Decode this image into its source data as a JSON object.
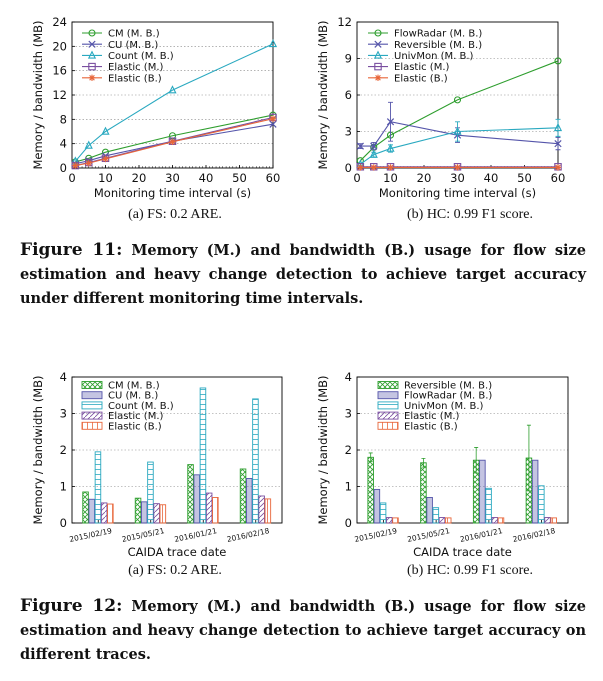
{
  "colors": {
    "cm": "#2e9e2e",
    "cu": "#5555aa",
    "count": "#2aa9c0",
    "elastic_m": "#7a4fa0",
    "elastic_b": "#e8663a",
    "reversible": "#2e9e2e",
    "flowradar": "#5555aa",
    "univmon": "#2aa9c0",
    "grid": "#888888"
  },
  "figure11": {
    "number": "Figure 11:",
    "caption": "Memory (M.) and bandwidth (B.) usage for flow size estimation and heavy change detection to achieve target accuracy under different monitoring time intervals."
  },
  "figure12": {
    "number": "Figure 12:",
    "caption": "Memory (M.) and bandwidth (B.) usage for flow size estimation and heavy change detection to achieve target accuracy on different traces."
  },
  "chart_data": [
    {
      "id": "fig11a",
      "type": "line",
      "caption": "(a) FS: 0.2 ARE.",
      "xlabel": "Monitoring time interval (s)",
      "ylabel": "Memory / bandwidth (MB)",
      "xlim": [
        0,
        60
      ],
      "ylim": [
        0,
        24
      ],
      "xticks": [
        0,
        10,
        20,
        30,
        40,
        50,
        60
      ],
      "yticks": [
        0,
        4,
        8,
        12,
        16,
        20,
        24
      ],
      "grid": true,
      "legend_position": "top-left",
      "x": [
        1,
        5,
        10,
        30,
        60
      ],
      "series": [
        {
          "name": "CM (M. B.)",
          "marker": "circle",
          "color": "cm",
          "values": [
            1.0,
            1.6,
            2.6,
            5.3,
            8.7
          ]
        },
        {
          "name": "CU (M. B.)",
          "marker": "x",
          "color": "cu",
          "values": [
            0.7,
            1.2,
            2.0,
            4.4,
            7.2
          ]
        },
        {
          "name": "Count (M. B.)",
          "marker": "triangle",
          "color": "count",
          "values": [
            1.1,
            3.7,
            6.0,
            12.8,
            20.4
          ]
        },
        {
          "name": "Elastic (M.)",
          "marker": "square",
          "color": "elastic_m",
          "values": [
            0.4,
            0.9,
            1.6,
            4.4,
            8.3
          ]
        },
        {
          "name": "Elastic (B.)",
          "marker": "star",
          "color": "elastic_b",
          "values": [
            0.4,
            0.8,
            1.5,
            4.3,
            8.1
          ]
        }
      ]
    },
    {
      "id": "fig11b",
      "type": "line",
      "caption": "(b) HC: 0.99 F1 score.",
      "xlabel": "Monitoring time interval (s)",
      "ylabel": "Memory / bandwidth (MB)",
      "xlim": [
        0,
        60
      ],
      "ylim": [
        0,
        12
      ],
      "xticks": [
        0,
        10,
        20,
        30,
        40,
        50,
        60
      ],
      "yticks": [
        0,
        3,
        6,
        9,
        12
      ],
      "grid": true,
      "legend_position": "top-center",
      "x": [
        1,
        5,
        10,
        30,
        60
      ],
      "series": [
        {
          "name": "FlowRadar (M. B.)",
          "marker": "circle",
          "color": "flowradar_green",
          "values": [
            0.6,
            1.7,
            2.7,
            5.6,
            8.8
          ]
        },
        {
          "name": "Reversible (M. B.)",
          "marker": "x",
          "color": "cu",
          "values": [
            1.8,
            1.8,
            3.8,
            2.7,
            2.0
          ],
          "err": [
            0.2,
            0.3,
            1.6,
            0.6,
            0.5
          ]
        },
        {
          "name": "UnivMon (M. B.)",
          "marker": "triangle",
          "color": "count",
          "values": [
            0.3,
            1.1,
            1.6,
            3.0,
            3.3
          ],
          "err": [
            0.1,
            0.2,
            0.3,
            0.8,
            0.7
          ]
        },
        {
          "name": "Elastic (M.)",
          "marker": "square",
          "color": "elastic_m",
          "values": [
            0.1,
            0.1,
            0.1,
            0.1,
            0.1
          ]
        },
        {
          "name": "Elastic (B.)",
          "marker": "star",
          "color": "elastic_b",
          "values": [
            0.05,
            0.05,
            0.05,
            0.05,
            0.05
          ]
        }
      ]
    },
    {
      "id": "fig12a",
      "type": "bar",
      "caption": "(a) FS: 0.2 ARE.",
      "xlabel": "CAIDA trace date",
      "ylabel": "Memory / bandwidth (MB)",
      "ylim": [
        0,
        4
      ],
      "yticks": [
        0,
        1,
        2,
        3,
        4
      ],
      "grid": true,
      "legend_position": "top-left",
      "categories": [
        "2015/02/19",
        "2015/05/21",
        "2016/01/21",
        "2016/02/18"
      ],
      "series": [
        {
          "name": "CM (M. B.)",
          "color": "cm",
          "pattern": "cross",
          "values": [
            0.85,
            0.68,
            1.6,
            1.48
          ]
        },
        {
          "name": "CU (M. B.)",
          "color": "cu",
          "pattern": "solid",
          "values": [
            0.65,
            0.58,
            1.32,
            1.22
          ]
        },
        {
          "name": "Count (M. B.)",
          "color": "count",
          "pattern": "hline",
          "values": [
            1.95,
            1.67,
            3.7,
            3.4
          ]
        },
        {
          "name": "Elastic (M.)",
          "color": "elastic_m",
          "pattern": "diag",
          "values": [
            0.55,
            0.53,
            0.82,
            0.74
          ]
        },
        {
          "name": "Elastic (B.)",
          "color": "elastic_b",
          "pattern": "vline",
          "values": [
            0.52,
            0.5,
            0.7,
            0.66
          ]
        }
      ]
    },
    {
      "id": "fig12b",
      "type": "bar",
      "caption": "(b) HC: 0.99 F1 score.",
      "xlabel": "CAIDA trace date",
      "ylabel": "Memory / bandwidth (MB)",
      "ylim": [
        0,
        4
      ],
      "yticks": [
        0,
        1,
        2,
        3,
        4
      ],
      "grid": true,
      "legend_position": "top-left",
      "categories": [
        "2015/02/19",
        "2015/05/21",
        "2016/01/21",
        "2016/02/18"
      ],
      "series": [
        {
          "name": "Reversible (M. B.)",
          "color": "cm",
          "pattern": "cross",
          "values": [
            1.8,
            1.65,
            1.72,
            1.78
          ],
          "err": [
            0.12,
            0.12,
            0.35,
            0.9
          ]
        },
        {
          "name": "FlowRadar (M. B.)",
          "color": "cu",
          "pattern": "solid",
          "values": [
            0.92,
            0.7,
            1.72,
            1.72
          ]
        },
        {
          "name": "UnivMon (M. B.)",
          "color": "count",
          "pattern": "hline",
          "values": [
            0.55,
            0.42,
            0.95,
            1.02
          ]
        },
        {
          "name": "Elastic (M.)",
          "color": "elastic_m",
          "pattern": "diag",
          "values": [
            0.15,
            0.15,
            0.15,
            0.15
          ]
        },
        {
          "name": "Elastic (B.)",
          "color": "elastic_b",
          "pattern": "vline",
          "values": [
            0.14,
            0.14,
            0.14,
            0.14
          ]
        }
      ]
    }
  ]
}
